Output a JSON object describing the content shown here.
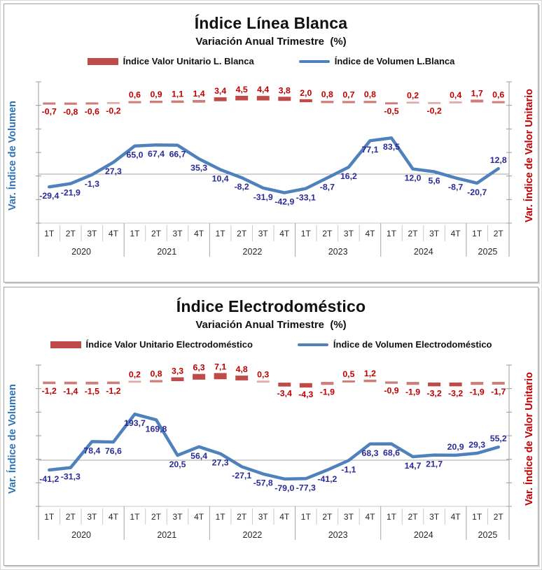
{
  "colors": {
    "volumen_line": "#4F81BD",
    "volumen_label": "#2B2B96",
    "valor_unitario_dash": "#BE4B48",
    "valor_unitario_dash_light": "#E2ABA9",
    "valor_unitario_dash_mid": "#CD7D7A",
    "valor_unitario_label": "#C00000",
    "left_axis_title_color": "#2E74B5",
    "right_axis_title_color": "#C00000",
    "axis_gray": "#9c9c9c",
    "grid_gray": "#a6a6a6",
    "divider_light": "#c9c9c9",
    "tick_text": "#262626"
  },
  "chart_data": [
    {
      "type": "line",
      "title": "Índice Línea Blanca",
      "subtitle": "Variación Anual Trimestre  (%)",
      "left_axis_title": "Var. Índice de Volumen",
      "right_axis_title": "Var. Índice de Valor Unitario",
      "legend_position": "top",
      "grid": "zero-line-only",
      "decimal_separator": ",",
      "legend": [
        {
          "label": "Índice Valor Unitario L. Blanca",
          "color": "#BE4B48",
          "marker": "thick-dash"
        },
        {
          "label": "Índice de Volumen L.Blanca",
          "color": "#4F81BD",
          "marker": "line"
        }
      ],
      "quarters": [
        "1T",
        "2T",
        "3T",
        "4T",
        "1T",
        "2T",
        "3T",
        "4T",
        "1T",
        "2T",
        "3T",
        "4T",
        "1T",
        "2T",
        "3T",
        "4T",
        "1T",
        "2T",
        "3T",
        "4T",
        "1T",
        "2T"
      ],
      "years": [
        {
          "label": "2020",
          "quarters": 4
        },
        {
          "label": "2021",
          "quarters": 4
        },
        {
          "label": "2022",
          "quarters": 4
        },
        {
          "label": "2023",
          "quarters": 4
        },
        {
          "label": "2024",
          "quarters": 4
        },
        {
          "label": "2025",
          "quarters": 2
        }
      ],
      "series": [
        {
          "name": "Índice Valor Unitario L. Blanca",
          "type": "dashed",
          "axis": "right",
          "values": [
            -0.7,
            -0.8,
            -0.6,
            -0.2,
            0.6,
            0.9,
            1.1,
            1.4,
            3.4,
            4.5,
            4.4,
            3.8,
            2.0,
            0.8,
            0.7,
            0.8,
            -0.5,
            0.2,
            -0.2,
            0.4,
            1.7,
            0.6
          ]
        },
        {
          "name": "Índice de Volumen L.Blanca",
          "type": "line",
          "axis": "left",
          "values": [
            -29.4,
            -21.9,
            -1.3,
            27.3,
            65.0,
            67.4,
            66.7,
            35.3,
            10.4,
            -8.2,
            -31.9,
            -42.9,
            -33.1,
            -8.7,
            16.2,
            77.1,
            83.5,
            12.0,
            5.6,
            -8.7,
            -20.7,
            12.8
          ]
        }
      ],
      "ylim_left_hint": [
        -150,
        200
      ],
      "ylim_right_hint": [
        -60,
        80
      ]
    },
    {
      "type": "line",
      "title": "Índice Electrodoméstico",
      "subtitle": "Variación Anual Trimestre  (%)",
      "left_axis_title": "Var. Índice de Volumen",
      "right_axis_title": "Var. Índice de Valor Unitario",
      "legend_position": "top",
      "grid": "zero-line-only",
      "decimal_separator": ",",
      "legend": [
        {
          "label": "Índice Valor Unitario Electrodoméstico",
          "color": "#BE4B48",
          "marker": "thick-dash"
        },
        {
          "label": "Índice de Volumen Electrodoméstico",
          "color": "#4F81BD",
          "marker": "line"
        }
      ],
      "quarters": [
        "1T",
        "2T",
        "3T",
        "4T",
        "1T",
        "2T",
        "3T",
        "4T",
        "1T",
        "2T",
        "3T",
        "4T",
        "1T",
        "2T",
        "3T",
        "4T",
        "1T",
        "2T",
        "3T",
        "4T",
        "1T",
        "2T"
      ],
      "years": [
        {
          "label": "2020",
          "quarters": 4
        },
        {
          "label": "2021",
          "quarters": 4
        },
        {
          "label": "2022",
          "quarters": 4
        },
        {
          "label": "2023",
          "quarters": 4
        },
        {
          "label": "2024",
          "quarters": 4
        },
        {
          "label": "2025",
          "quarters": 2
        }
      ],
      "series": [
        {
          "name": "Índice Valor Unitario Electrodoméstico",
          "type": "dashed",
          "axis": "right",
          "values": [
            -1.2,
            -1.4,
            -1.5,
            -1.2,
            0.2,
            0.8,
            3.3,
            6.3,
            7.1,
            4.8,
            0.3,
            -3.4,
            -4.3,
            -1.9,
            0.5,
            1.2,
            -0.9,
            -1.9,
            -3.2,
            -3.2,
            -1.9,
            -1.7
          ]
        },
        {
          "name": "Índice de Volumen Electrodoméstico",
          "type": "line",
          "axis": "left",
          "values": [
            -41.2,
            -31.3,
            78.4,
            76.6,
            193.7,
            169.8,
            20.5,
            56.4,
            27.3,
            -27.1,
            -57.8,
            -79.0,
            -77.3,
            -41.2,
            -1.1,
            68.3,
            68.6,
            14.7,
            21.7,
            20.9,
            29.3,
            55.2
          ]
        }
      ],
      "ylim_left_hint": [
        -300,
        400
      ],
      "ylim_right_hint": [
        -60,
        80
      ]
    }
  ]
}
